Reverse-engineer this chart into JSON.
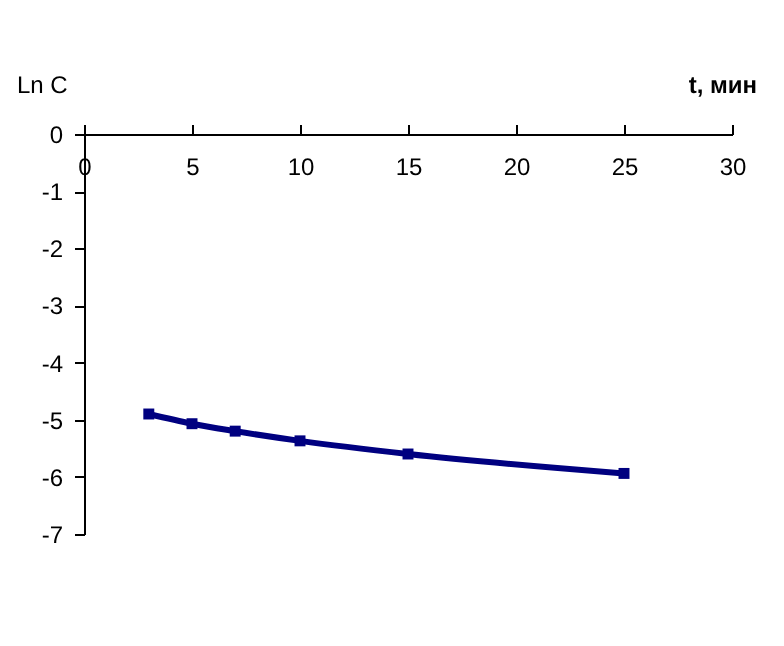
{
  "chart_data": {
    "type": "line",
    "xlabel": "t, мин",
    "ylabel": "Ln C",
    "x": [
      3,
      5,
      7,
      10,
      15,
      25
    ],
    "series": [
      {
        "color": "#000080",
        "values": [
          -4.9,
          -5.07,
          -5.2,
          -5.37,
          -5.6,
          -5.94
        ]
      }
    ],
    "xlim": [
      0,
      30
    ],
    "xticks": [
      0,
      5,
      10,
      15,
      20,
      25,
      30
    ],
    "ylim": [
      -7,
      0
    ],
    "yticks": [
      0,
      -1,
      -2,
      -3,
      -4,
      -5,
      -6,
      -7
    ],
    "grid": false,
    "marker": "square",
    "line_style": "solid"
  }
}
